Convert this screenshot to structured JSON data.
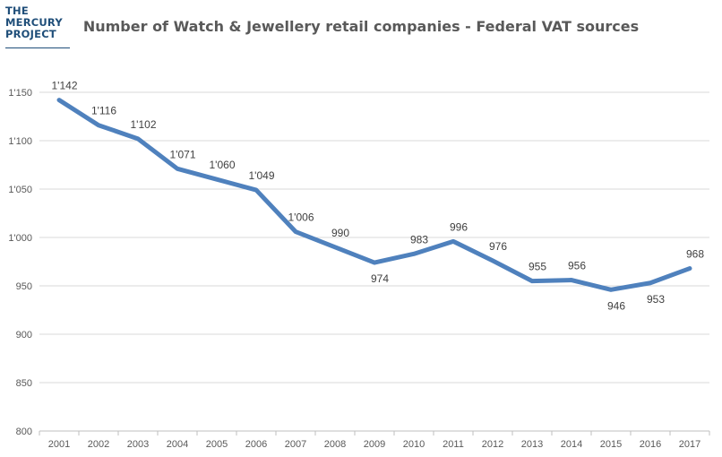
{
  "logo": {
    "lines": [
      "THE",
      "MERCURY",
      "PROJECT"
    ]
  },
  "chart_data": {
    "type": "line",
    "title": "Number of Watch & Jewellery retail companies - Federal VAT  sources",
    "xlabel": "",
    "ylabel": "",
    "categories": [
      "2001",
      "2002",
      "2003",
      "2004",
      "2005",
      "2006",
      "2007",
      "2008",
      "2009",
      "2010",
      "2011",
      "2012",
      "2013",
      "2014",
      "2015",
      "2016",
      "2017"
    ],
    "series": [
      {
        "values": [
          1142,
          1116,
          1102,
          1071,
          1060,
          1049,
          1006,
          990,
          974,
          983,
          996,
          976,
          955,
          956,
          946,
          953,
          968
        ],
        "labels": [
          "1'142",
          "1'116",
          "1'102",
          "1'071",
          "1'060",
          "1'049",
          "1'006",
          "990",
          "974",
          "983",
          "996",
          "976",
          "955",
          "956",
          "946",
          "953",
          "968"
        ],
        "label_position": [
          "above",
          "above",
          "above",
          "above",
          "above",
          "above",
          "above",
          "above",
          "below",
          "above",
          "above",
          "above",
          "above",
          "above",
          "below",
          "below",
          "above"
        ]
      }
    ],
    "ylim": [
      800,
      1150
    ],
    "yticks": [
      800,
      850,
      900,
      950,
      1000,
      1050,
      1100,
      1150
    ],
    "ytick_labels": [
      "800",
      "850",
      "900",
      "950",
      "1'000",
      "1'050",
      "1'100",
      "1'150"
    ],
    "grid": true,
    "legend": "none",
    "line_color": "#4f81bd"
  }
}
